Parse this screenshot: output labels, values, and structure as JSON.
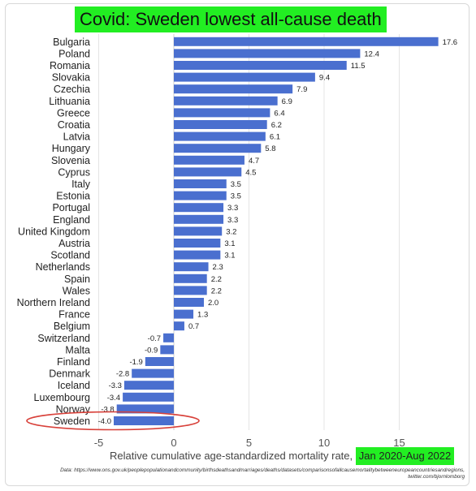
{
  "chart_data": {
    "type": "bar",
    "orientation": "horizontal",
    "title": "Covid: Sweden lowest all-cause death",
    "xlabel": "Relative cumulative age-standardized mortality rate,",
    "xlabel_highlight": "Jan 2020-Aug 2022",
    "ylabel": "",
    "xlim": [
      -6,
      19
    ],
    "xticks": [
      -5,
      0,
      5,
      10,
      15
    ],
    "grid": "vertical",
    "categories": [
      "Bulgaria",
      "Poland",
      "Romania",
      "Slovakia",
      "Czechia",
      "Lithuania",
      "Greece",
      "Croatia",
      "Latvia",
      "Hungary",
      "Slovenia",
      "Cyprus",
      "Italy",
      "Estonia",
      "Portugal",
      "England",
      "United Kingdom",
      "Austria",
      "Scotland",
      "Netherlands",
      "Spain",
      "Wales",
      "Northern Ireland",
      "France",
      "Belgium",
      "Switzerland",
      "Malta",
      "Finland",
      "Denmark",
      "Iceland",
      "Luxembourg",
      "Norway",
      "Sweden"
    ],
    "values": [
      17.6,
      12.4,
      11.5,
      9.4,
      7.9,
      6.9,
      6.4,
      6.2,
      6.1,
      5.8,
      4.7,
      4.5,
      3.5,
      3.5,
      3.3,
      3.3,
      3.2,
      3.1,
      3.1,
      2.3,
      2.2,
      2.2,
      2.0,
      1.3,
      0.7,
      -0.7,
      -0.9,
      -1.9,
      -2.8,
      -3.3,
      -3.4,
      -3.8,
      -4.0
    ],
    "value_labels": [
      "17.6",
      "12.4",
      "11.5",
      "9.4",
      "7.9",
      "6.9",
      "6.4",
      "6.2",
      "6.1",
      "5.8",
      "4.7",
      "4.5",
      "3.5",
      "3.5",
      "3.3",
      "3.3",
      "3.2",
      "3.1",
      "3.1",
      "2.3",
      "2.2",
      "2.2",
      "2.0",
      "1.3",
      "0.7",
      "-0.7",
      "-0.9",
      "-1.9",
      "-2.8",
      "-3.3",
      "-3.4",
      "-3.8",
      "-4.0"
    ],
    "highlight_category": "Sweden"
  },
  "colors": {
    "bar": "#4a6fcf",
    "title_background": "#22ee22",
    "highlight_ellipse": "#d8413a",
    "grid": "#e4e4e4"
  },
  "source_note": "Data: https://www.ons.gov.uk/peoplepopulationandcommunity/birthsdeathsandmarriages/deaths/datasets/comparisonsofallcausemortalitybetweeneuropeancountriesandregions, twitter.com/bjornlomborg"
}
